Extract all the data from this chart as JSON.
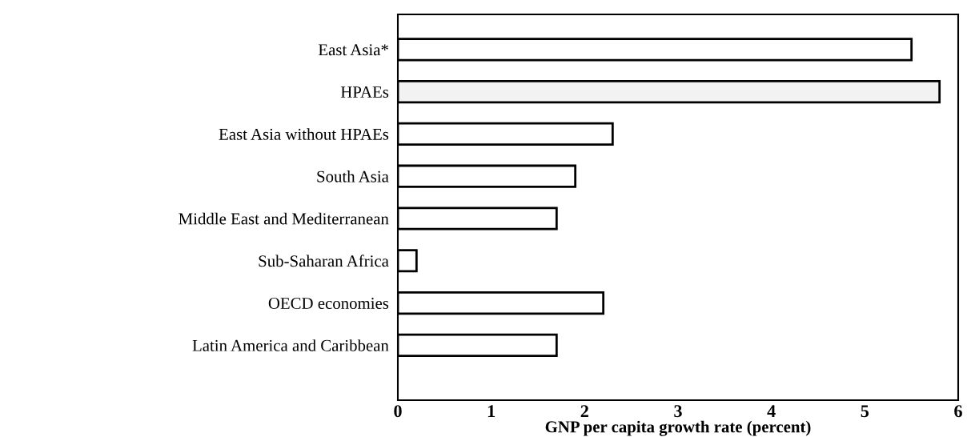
{
  "chart_data": {
    "type": "bar",
    "orientation": "horizontal",
    "xlabel": "GNP per capita growth rate (percent)",
    "categories": [
      "East Asia*",
      "HPAEs",
      "East Asia without HPAEs",
      "South Asia",
      "Middle East and Mediterranean",
      "Sub-Saharan Africa",
      "OECD economies",
      "Latin America and Caribbean"
    ],
    "values": [
      5.5,
      5.8,
      2.3,
      1.9,
      1.7,
      0.2,
      2.2,
      1.7
    ],
    "colors": [
      "#ffffff",
      "#f2f2f2",
      "#ffffff",
      "#ffffff",
      "#ffffff",
      "#ffffff",
      "#ffffff",
      "#ffffff"
    ],
    "xlim": [
      0,
      6
    ],
    "xticks": [
      0,
      1,
      2,
      3,
      4,
      5,
      6
    ],
    "grid": false,
    "legend": false
  }
}
